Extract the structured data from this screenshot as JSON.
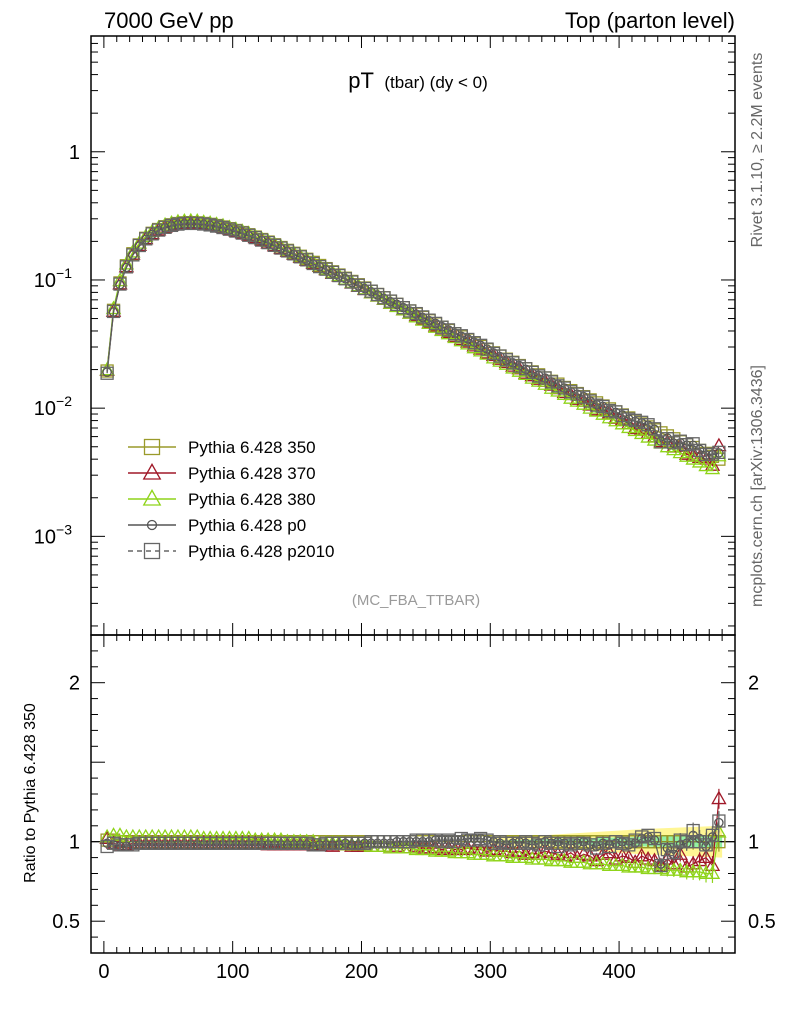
{
  "header": {
    "left": "7000 GeV pp",
    "right": "Top (parton level)"
  },
  "side": {
    "rivet": "Rivet 3.1.10, ≥ 2.2M events",
    "mcplots": "mcplots.cern.ch [arXiv:1306.3436]"
  },
  "chart_data": {
    "type": "line",
    "title_main": "pT",
    "title_sub": "(tbar) (dy < 0)",
    "analysis": "(MC_FBA_TTBAR)",
    "xlabel": "",
    "ylabel_top": "",
    "ylabel_ratio": "Ratio to Pythia 6.428 350",
    "xlim": [
      -10,
      490
    ],
    "ylim": [
      0.00017,
      8
    ],
    "ratio_ylim": [
      0.3,
      2.3
    ],
    "log_y": true,
    "x_ticks": [
      0,
      100,
      200,
      300,
      400
    ],
    "x_tick_labels": [
      "0",
      "100",
      "200",
      "300",
      "400"
    ],
    "y_ticks": [
      0.001,
      0.01,
      0.1,
      1
    ],
    "y_tick_labels": [
      {
        "base": "10",
        "exp": "−3"
      },
      {
        "base": "10",
        "exp": "−2"
      },
      {
        "base": "10",
        "exp": "−1"
      },
      {
        "base": "1",
        "exp": ""
      }
    ],
    "ratio_ticks": [
      0.5,
      1,
      2
    ],
    "ratio_tick_labels": [
      "0.5",
      "1",
      "2"
    ],
    "legend_position": "lower-left",
    "x": [
      2.5,
      7.5,
      12.5,
      17.5,
      22.5,
      27.5,
      32.5,
      37.5,
      42.5,
      47.5,
      52.5,
      57.5,
      62.5,
      67.5,
      72.5,
      77.5,
      82.5,
      87.5,
      92.5,
      97.5,
      102.5,
      107.5,
      112.5,
      117.5,
      122.5,
      127.5,
      132.5,
      137.5,
      142.5,
      147.5,
      152.5,
      157.5,
      162.5,
      167.5,
      172.5,
      177.5,
      182.5,
      187.5,
      192.5,
      197.5,
      202.5,
      207.5,
      212.5,
      217.5,
      222.5,
      227.5,
      232.5,
      237.5,
      242.5,
      247.5,
      252.5,
      257.5,
      262.5,
      267.5,
      272.5,
      277.5,
      282.5,
      287.5,
      292.5,
      297.5,
      302.5,
      307.5,
      312.5,
      317.5,
      322.5,
      327.5,
      332.5,
      337.5,
      342.5,
      347.5,
      352.5,
      357.5,
      362.5,
      367.5,
      372.5,
      377.5,
      382.5,
      387.5,
      392.5,
      397.5,
      402.5,
      407.5,
      412.5,
      417.5,
      422.5,
      427.5,
      432.5,
      437.5,
      442.5,
      447.5,
      452.5,
      457.5,
      462.5,
      467.5,
      472.5,
      477.5
    ],
    "reference": [
      0.0193,
      0.0574,
      0.0948,
      0.1291,
      0.1601,
      0.1876,
      0.2114,
      0.2313,
      0.2475,
      0.2601,
      0.2693,
      0.2755,
      0.2789,
      0.2799,
      0.2788,
      0.2759,
      0.2715,
      0.2658,
      0.259,
      0.2514,
      0.2432,
      0.2344,
      0.2254,
      0.2161,
      0.2068,
      0.1975,
      0.1882,
      0.1791,
      0.1702,
      0.1615,
      0.1531,
      0.145,
      0.1372,
      0.1297,
      0.1226,
      0.1158,
      0.1093,
      0.1032,
      0.0974,
      0.0918,
      0.0866,
      0.0817,
      0.077,
      0.0726,
      0.0684,
      0.0645,
      0.0608,
      0.0573,
      0.0541,
      0.051,
      0.0481,
      0.0454,
      0.0428,
      0.0404,
      0.0381,
      0.036,
      0.034,
      0.0321,
      0.0303,
      0.0286,
      0.027,
      0.0255,
      0.0241,
      0.0228,
      0.0215,
      0.0203,
      0.0192,
      0.0182,
      0.0172,
      0.0162,
      0.0154,
      0.0145,
      0.0137,
      0.013,
      0.0123,
      0.0116,
      0.011,
      0.0104,
      0.00987,
      0.00935,
      0.00885,
      0.00839,
      0.00795,
      0.00753,
      0.00714,
      0.00677,
      0.00642,
      0.00608,
      0.00577,
      0.00547,
      0.00519,
      0.00493,
      0.00468,
      0.00444,
      0.00421,
      0.004
    ],
    "series": [
      {
        "name": "Pythia 6.428 350",
        "color": "#9a9a2a",
        "marker": "square",
        "ratio": [
          1.01,
          1.01,
          1.0,
          1.0,
          1.0,
          1.0,
          1.0,
          1.0,
          1.0,
          1.0,
          1.0,
          1.0,
          1.0,
          1.0,
          1.0,
          1.0,
          1.0,
          1.0,
          1.0,
          1.0,
          1.0,
          1.0,
          1.0,
          1.0,
          1.0,
          1.0,
          1.0,
          1.0,
          1.0,
          1.0,
          1.0,
          1.0,
          1.0,
          1.0,
          1.0,
          1.0,
          1.0,
          1.0,
          1.0,
          1.0,
          1.0,
          1.0,
          1.0,
          1.0,
          1.0,
          1.0,
          1.0,
          1.0,
          1.0,
          1.0,
          1.0,
          1.0,
          1.0,
          1.0,
          1.0,
          1.0,
          1.0,
          1.0,
          1.0,
          1.0,
          1.0,
          1.0,
          1.0,
          1.0,
          1.0,
          1.0,
          1.0,
          1.0,
          1.0,
          1.0,
          1.0,
          1.0,
          1.0,
          1.0,
          1.0,
          1.0,
          1.0,
          1.0,
          1.0,
          1.0,
          1.0,
          1.0,
          1.0,
          1.0,
          1.0,
          1.0,
          1.0,
          1.0,
          1.0,
          1.0,
          1.0,
          1.0,
          1.0,
          1.0,
          1.0,
          1.0
        ]
      },
      {
        "name": "Pythia 6.428 370",
        "color": "#a01828",
        "marker": "triangle",
        "ratio": [
          1.02,
          0.99,
          0.98,
          0.98,
          0.99,
          0.99,
          0.99,
          0.99,
          0.99,
          0.99,
          0.99,
          0.99,
          0.99,
          0.99,
          0.99,
          0.99,
          0.99,
          0.99,
          0.99,
          0.99,
          0.99,
          0.99,
          0.99,
          0.99,
          0.99,
          0.98,
          0.98,
          0.98,
          0.98,
          0.98,
          0.98,
          0.98,
          0.98,
          0.98,
          0.98,
          0.97,
          0.98,
          0.98,
          0.97,
          0.97,
          0.97,
          0.97,
          0.97,
          0.97,
          0.96,
          0.97,
          0.96,
          0.96,
          0.97,
          0.96,
          0.96,
          0.96,
          0.95,
          0.96,
          0.95,
          0.95,
          0.96,
          0.95,
          0.95,
          0.94,
          0.95,
          0.94,
          0.94,
          0.93,
          0.94,
          0.92,
          0.93,
          0.92,
          0.94,
          0.93,
          0.92,
          0.91,
          0.93,
          0.9,
          0.92,
          0.91,
          0.88,
          0.92,
          0.93,
          0.89,
          0.91,
          0.9,
          0.87,
          0.91,
          0.89,
          0.88,
          0.85,
          0.89,
          0.86,
          0.92,
          0.84,
          0.86,
          0.88,
          0.9,
          0.85,
          1.27
        ]
      },
      {
        "name": "Pythia 6.428 380",
        "color": "#8fd41a",
        "marker": "triangle",
        "ratio": [
          1.03,
          1.04,
          1.04,
          1.03,
          1.03,
          1.03,
          1.03,
          1.03,
          1.03,
          1.03,
          1.03,
          1.03,
          1.03,
          1.03,
          1.03,
          1.02,
          1.02,
          1.02,
          1.02,
          1.02,
          1.02,
          1.02,
          1.02,
          1.01,
          1.01,
          1.01,
          1.01,
          1.01,
          1.0,
          1.0,
          1.0,
          1.0,
          1.0,
          0.99,
          0.99,
          0.99,
          0.99,
          0.98,
          0.98,
          0.98,
          0.98,
          0.97,
          0.97,
          0.97,
          0.96,
          0.96,
          0.96,
          0.96,
          0.95,
          0.95,
          0.95,
          0.94,
          0.94,
          0.94,
          0.93,
          0.93,
          0.93,
          0.92,
          0.92,
          0.92,
          0.91,
          0.91,
          0.91,
          0.9,
          0.9,
          0.9,
          0.89,
          0.89,
          0.89,
          0.88,
          0.88,
          0.88,
          0.87,
          0.87,
          0.87,
          0.86,
          0.86,
          0.86,
          0.85,
          0.85,
          0.85,
          0.84,
          0.84,
          0.84,
          0.83,
          0.83,
          0.83,
          0.82,
          0.82,
          0.82,
          0.81,
          0.81,
          0.81,
          0.8,
          0.8,
          1.06
        ]
      },
      {
        "name": "Pythia 6.428 p0",
        "color": "#555555",
        "marker": "circle",
        "ratio": [
          0.99,
          0.98,
          0.97,
          0.97,
          0.98,
          0.98,
          0.98,
          0.98,
          0.98,
          0.98,
          0.98,
          0.98,
          0.98,
          0.98,
          0.98,
          0.98,
          0.98,
          0.98,
          0.98,
          0.98,
          0.98,
          0.98,
          0.98,
          0.98,
          0.98,
          0.98,
          0.98,
          0.98,
          0.98,
          0.98,
          0.98,
          0.98,
          0.97,
          0.98,
          0.98,
          0.98,
          0.98,
          0.99,
          0.98,
          0.98,
          0.99,
          0.99,
          0.99,
          0.99,
          0.99,
          1.0,
          1.0,
          1.0,
          1.0,
          1.0,
          1.0,
          1.01,
          1.01,
          1.01,
          1.01,
          1.01,
          1.02,
          1.02,
          1.02,
          1.01,
          1.0,
          0.99,
          0.98,
          0.99,
          1.0,
          0.99,
          0.98,
          0.99,
          1.0,
          0.99,
          1.0,
          0.99,
          0.98,
          0.99,
          1.0,
          0.98,
          0.97,
          0.99,
          0.98,
          0.99,
          1.0,
          0.98,
          0.99,
          1.02,
          1.03,
          1.01,
          0.86,
          0.96,
          0.92,
          0.98,
          0.99,
          1.04,
          1.02,
          0.97,
          1.03,
          1.12
        ]
      },
      {
        "name": "Pythia 6.428 p2010",
        "color": "#666666",
        "marker": "square",
        "dashed": true,
        "ratio": [
          0.97,
          0.99,
          0.98,
          0.98,
          0.98,
          0.99,
          0.99,
          0.99,
          0.99,
          0.99,
          0.99,
          0.99,
          0.99,
          0.99,
          0.99,
          0.99,
          0.99,
          0.99,
          0.99,
          0.99,
          0.99,
          0.99,
          0.99,
          0.99,
          0.99,
          0.99,
          0.99,
          0.99,
          0.99,
          0.99,
          0.99,
          0.99,
          0.98,
          0.98,
          0.99,
          0.99,
          0.99,
          0.99,
          0.99,
          0.99,
          0.99,
          1.0,
          1.0,
          1.0,
          1.0,
          1.0,
          1.0,
          1.0,
          1.01,
          1.01,
          1.01,
          1.01,
          1.0,
          1.01,
          1.0,
          1.02,
          1.01,
          1.01,
          1.02,
          1.01,
          0.99,
          1.0,
          0.99,
          0.99,
          0.99,
          1.0,
          0.99,
          0.98,
          1.0,
          0.99,
          0.97,
          0.99,
          0.98,
          0.99,
          0.99,
          0.98,
          0.96,
          0.99,
          0.97,
          1.0,
          0.99,
          0.98,
          1.01,
          1.03,
          1.04,
          1.02,
          0.85,
          0.95,
          0.93,
          1.01,
          1.0,
          1.07,
          1.0,
          0.98,
          1.04,
          1.13
        ]
      }
    ],
    "band": {
      "outer_color": "#fff58a",
      "inner_color": "#7ff0a8",
      "x": [
        300,
        360,
        420,
        480
      ],
      "outer_half_width": [
        0.02,
        0.05,
        0.08,
        0.1
      ],
      "inner_half_width": [
        0.005,
        0.02,
        0.03,
        0.04
      ]
    }
  }
}
